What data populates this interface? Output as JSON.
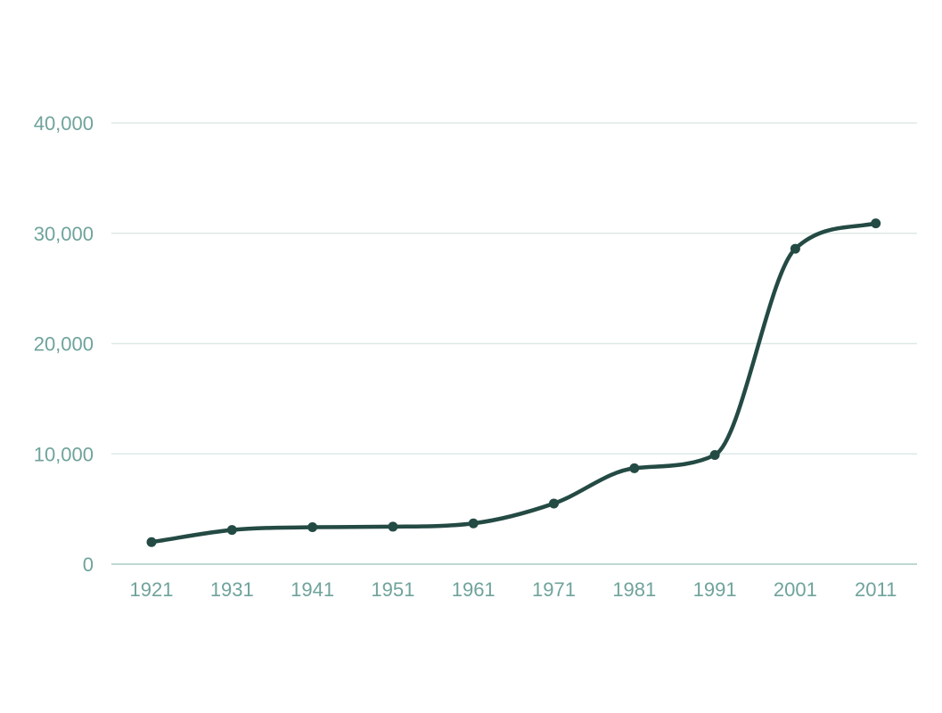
{
  "chart_data": {
    "type": "line",
    "title": "",
    "xlabel": "",
    "ylabel": "",
    "x": [
      "1921",
      "1931",
      "1941",
      "1951",
      "1961",
      "1971",
      "1981",
      "1991",
      "2001",
      "2011"
    ],
    "series": [
      {
        "values": [
          2000,
          3100,
          3350,
          3400,
          3700,
          5500,
          8700,
          9900,
          28600,
          30900
        ]
      }
    ],
    "y_ticks": [
      0,
      10000,
      20000,
      30000,
      40000
    ],
    "y_tick_labels": [
      "0",
      "10,000",
      "20,000",
      "30,000",
      "40,000"
    ],
    "ylim": [
      0,
      40000
    ],
    "grid": true,
    "legend": "none",
    "smooth": true,
    "colors": {
      "line": "#244a44",
      "marker": "#244a44",
      "grid": "#dde8e6",
      "axis": "#a9c8c3",
      "tick_text": "#6fa39b"
    }
  }
}
